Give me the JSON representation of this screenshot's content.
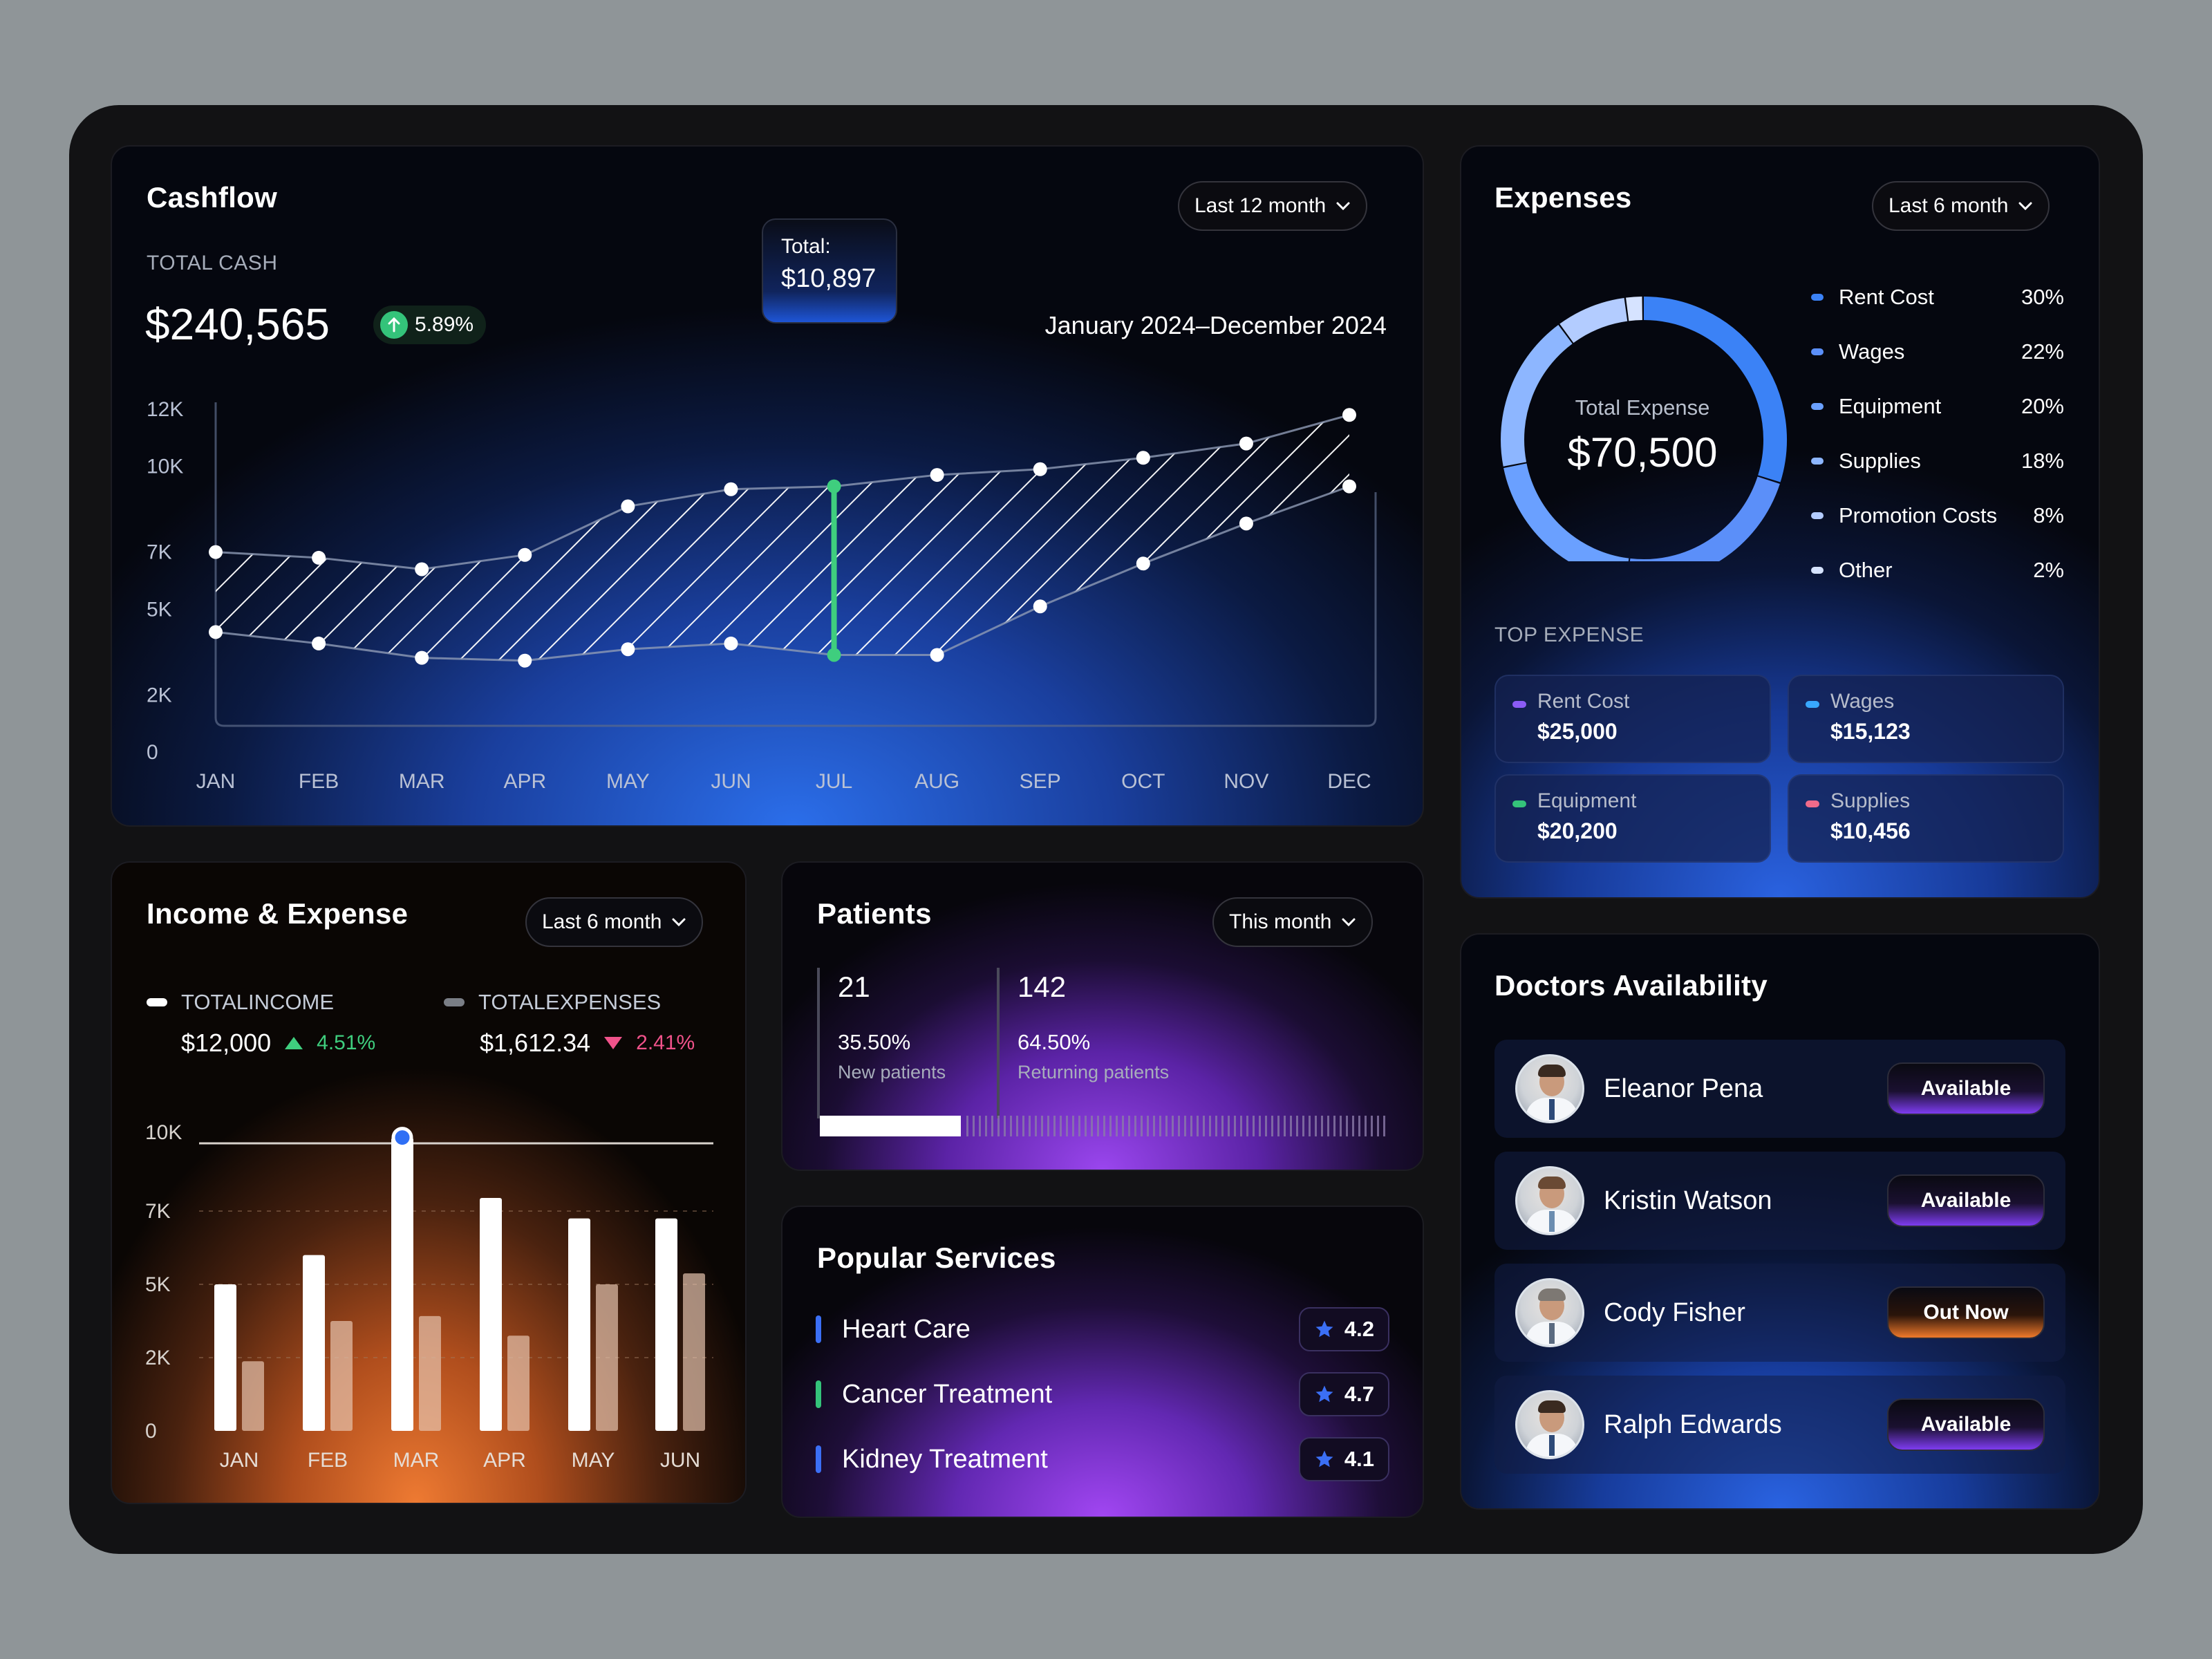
{
  "cashflow": {
    "title": "Cashflow",
    "dropdown": "Last 12 month",
    "total_label": "TOTAL CASH",
    "total_value": "$240,565",
    "change": "5.89%",
    "range": "January 2024–December 2024",
    "tooltip_label": "Total:",
    "tooltip_value": "$10,897"
  },
  "expenses": {
    "title": "Expenses",
    "dropdown": "Last 6 month",
    "donut_label": "Total Expense",
    "donut_value": "$70,500",
    "legend": [
      {
        "name": "Rent Cost",
        "pct": "30%",
        "color": "#3b82f6"
      },
      {
        "name": "Wages",
        "pct": "22%",
        "color": "#5b8ff9"
      },
      {
        "name": "Equipment",
        "pct": "20%",
        "color": "#6aa0ff"
      },
      {
        "name": "Supplies",
        "pct": "18%",
        "color": "#8db6ff"
      },
      {
        "name": "Promotion Costs",
        "pct": "8%",
        "color": "#b3ccff"
      },
      {
        "name": "Other",
        "pct": "2%",
        "color": "#d6e3ff"
      }
    ],
    "top_label": "TOP EXPENSE",
    "top": [
      {
        "name": "Rent Cost",
        "value": "$25,000",
        "color": "#8b5cf6"
      },
      {
        "name": "Wages",
        "value": "$15,123",
        "color": "#38a8ff"
      },
      {
        "name": "Equipment",
        "value": "$20,200",
        "color": "#34c37a"
      },
      {
        "name": "Supplies",
        "value": "$10,456",
        "color": "#f06b8a"
      }
    ]
  },
  "income": {
    "title": "Income & Expense",
    "dropdown": "Last 6 month",
    "income_label": "TOTALINCOME",
    "income_value": "$12,000",
    "income_change": "4.51%",
    "expense_label": "TOTALEXPENSES",
    "expense_value": "$1,612.34",
    "expense_change": "2.41%"
  },
  "patients": {
    "title": "Patients",
    "dropdown": "This month",
    "new_count": "21",
    "new_pct": "35.50%",
    "new_label": "New patients",
    "ret_count": "142",
    "ret_pct": "64.50%",
    "ret_label": "Returning patients",
    "new_share": 0.355
  },
  "services": {
    "title": "Popular Services",
    "items": [
      {
        "name": "Heart Care",
        "rating": "4.2",
        "color": "#3b6ff5"
      },
      {
        "name": "Cancer Treatment",
        "rating": "4.7",
        "color": "#34c37a"
      },
      {
        "name": "Kidney Treatment",
        "rating": "4.1",
        "color": "#3b6ff5"
      }
    ]
  },
  "doctors": {
    "title": "Doctors Availability",
    "items": [
      {
        "name": "Eleanor Pena",
        "status": "Available"
      },
      {
        "name": "Kristin Watson",
        "status": "Available"
      },
      {
        "name": "Cody Fisher",
        "status": "Out Now"
      },
      {
        "name": "Ralph Edwards",
        "status": "Available"
      }
    ]
  },
  "chart_data": [
    {
      "type": "area",
      "title": "Cashflow",
      "categories": [
        "JAN",
        "FEB",
        "MAR",
        "APR",
        "MAY",
        "JUN",
        "JUL",
        "AUG",
        "SEP",
        "OCT",
        "NOV",
        "DEC"
      ],
      "y_ticks": [
        "0",
        "2K",
        "5K",
        "7K",
        "10K",
        "12K"
      ],
      "ylim": [
        0,
        12000
      ],
      "series": [
        {
          "values": [
            7000,
            6800,
            6400,
            6900,
            8600,
            9200,
            9300,
            9700,
            9900,
            10300,
            10800,
            11800
          ]
        },
        {
          "values": [
            4200,
            3800,
            3300,
            3200,
            3600,
            3800,
            3400,
            3400,
            5100,
            6600,
            8000,
            9300
          ]
        }
      ],
      "highlight": {
        "category": "JUL",
        "label": "Total:",
        "value": "$10,897"
      },
      "grid": false
    },
    {
      "type": "pie",
      "title": "Expenses",
      "labels": [
        "Rent Cost",
        "Wages",
        "Equipment",
        "Supplies",
        "Promotion Costs",
        "Other"
      ],
      "values": [
        30,
        22,
        20,
        18,
        8,
        2
      ]
    },
    {
      "type": "bar",
      "title": "Income & Expense",
      "categories": [
        "JAN",
        "FEB",
        "MAR",
        "APR",
        "MAY",
        "JUN"
      ],
      "y_ticks": [
        "0",
        "2K",
        "5K",
        "7K",
        "10K"
      ],
      "ylim": [
        0,
        10000
      ],
      "series": [
        {
          "name": "TOTALINCOME",
          "values": [
            5000,
            5800,
            9800,
            7500,
            6800,
            6800
          ]
        },
        {
          "name": "TOTALEXPENSES",
          "values": [
            1900,
            3500,
            3700,
            2900,
            5000,
            5300
          ]
        }
      ],
      "grid": true
    }
  ]
}
